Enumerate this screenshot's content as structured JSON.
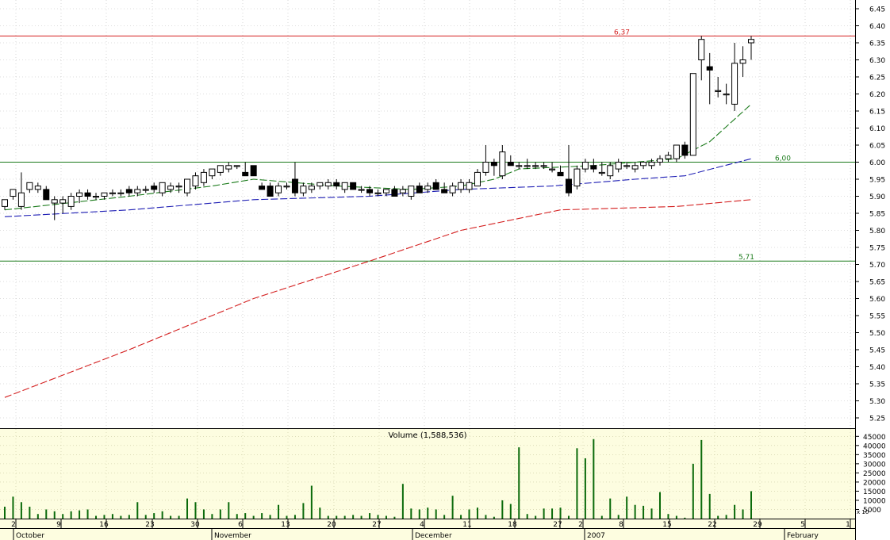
{
  "chart_data": [
    {
      "type": "candlestick",
      "panel": "price",
      "yticks": [
        "6.45",
        "6.40",
        "6.35",
        "6.30",
        "6.25",
        "6.20",
        "6.15",
        "6.10",
        "6.05",
        "6.00",
        "5.95",
        "5.90",
        "5.85",
        "5.80",
        "5.75",
        "5.70",
        "5.65",
        "5.60",
        "5.55",
        "5.50",
        "5.45",
        "5.40",
        "5.35",
        "5.30",
        "5.25"
      ],
      "ylim": [
        5.21,
        6.49
      ],
      "grid": true,
      "horizontal_lines": [
        {
          "value": 6.37,
          "label": "6,37",
          "color": "#d42020"
        },
        {
          "value": 6.0,
          "label": "6,00",
          "color": "#1a7a1a"
        },
        {
          "value": 5.71,
          "label": "5,71",
          "color": "#1a7a1a"
        }
      ],
      "candles": [
        {
          "date": "2006-10-02",
          "o": 5.87,
          "h": 5.89,
          "l": 5.86,
          "c": 5.89
        },
        {
          "date": "2006-10-03",
          "o": 5.9,
          "h": 5.92,
          "l": 5.89,
          "c": 5.92
        },
        {
          "date": "2006-10-04",
          "o": 5.87,
          "h": 5.97,
          "l": 5.86,
          "c": 5.91
        },
        {
          "date": "2006-10-05",
          "o": 5.92,
          "h": 5.94,
          "l": 5.91,
          "c": 5.94
        },
        {
          "date": "2006-10-06",
          "o": 5.92,
          "h": 5.94,
          "l": 5.91,
          "c": 5.93
        },
        {
          "date": "2006-10-09",
          "o": 5.92,
          "h": 5.93,
          "l": 5.89,
          "c": 5.89
        },
        {
          "date": "2006-10-10",
          "o": 5.88,
          "h": 5.9,
          "l": 5.83,
          "c": 5.89
        },
        {
          "date": "2006-10-11",
          "o": 5.88,
          "h": 5.9,
          "l": 5.85,
          "c": 5.89
        },
        {
          "date": "2006-10-12",
          "o": 5.87,
          "h": 5.91,
          "l": 5.86,
          "c": 5.9
        },
        {
          "date": "2006-10-13",
          "o": 5.9,
          "h": 5.92,
          "l": 5.88,
          "c": 5.91
        },
        {
          "date": "2006-10-16",
          "o": 5.91,
          "h": 5.92,
          "l": 5.89,
          "c": 5.9
        },
        {
          "date": "2006-10-17",
          "o": 5.9,
          "h": 5.91,
          "l": 5.89,
          "c": 5.9
        },
        {
          "date": "2006-10-18",
          "o": 5.9,
          "h": 5.91,
          "l": 5.89,
          "c": 5.91
        },
        {
          "date": "2006-10-19",
          "o": 5.91,
          "h": 5.92,
          "l": 5.9,
          "c": 5.91
        },
        {
          "date": "2006-10-20",
          "o": 5.91,
          "h": 5.92,
          "l": 5.9,
          "c": 5.91
        },
        {
          "date": "2006-10-23",
          "o": 5.92,
          "h": 5.93,
          "l": 5.9,
          "c": 5.91
        },
        {
          "date": "2006-10-24",
          "o": 5.91,
          "h": 5.93,
          "l": 5.9,
          "c": 5.92
        },
        {
          "date": "2006-10-25",
          "o": 5.92,
          "h": 5.93,
          "l": 5.91,
          "c": 5.92
        },
        {
          "date": "2006-10-26",
          "o": 5.93,
          "h": 5.94,
          "l": 5.91,
          "c": 5.92
        },
        {
          "date": "2006-10-27",
          "o": 5.91,
          "h": 5.94,
          "l": 5.9,
          "c": 5.94
        },
        {
          "date": "2006-10-30",
          "o": 5.92,
          "h": 5.94,
          "l": 5.91,
          "c": 5.93
        },
        {
          "date": "2006-10-31",
          "o": 5.93,
          "h": 5.94,
          "l": 5.91,
          "c": 5.93
        },
        {
          "date": "2006-11-01",
          "o": 5.91,
          "h": 5.95,
          "l": 5.9,
          "c": 5.95
        },
        {
          "date": "2006-11-02",
          "o": 5.93,
          "h": 5.97,
          "l": 5.92,
          "c": 5.96
        },
        {
          "date": "2006-11-03",
          "o": 5.94,
          "h": 5.98,
          "l": 5.93,
          "c": 5.97
        },
        {
          "date": "2006-11-06",
          "o": 5.96,
          "h": 5.98,
          "l": 5.95,
          "c": 5.98
        },
        {
          "date": "2006-11-07",
          "o": 5.97,
          "h": 5.99,
          "l": 5.96,
          "c": 5.99
        },
        {
          "date": "2006-11-08",
          "o": 5.98,
          "h": 6.0,
          "l": 5.97,
          "c": 5.99
        },
        {
          "date": "2006-11-09",
          "o": 5.99,
          "h": 5.99,
          "l": 5.98,
          "c": 5.99
        },
        {
          "date": "2006-11-10",
          "o": 5.97,
          "h": 6.0,
          "l": 5.96,
          "c": 5.96
        },
        {
          "date": "2006-11-13",
          "o": 5.99,
          "h": 5.99,
          "l": 5.96,
          "c": 5.96
        },
        {
          "date": "2006-11-14",
          "o": 5.93,
          "h": 5.94,
          "l": 5.92,
          "c": 5.92
        },
        {
          "date": "2006-11-15",
          "o": 5.93,
          "h": 5.94,
          "l": 5.9,
          "c": 5.9
        },
        {
          "date": "2006-11-16",
          "o": 5.91,
          "h": 5.94,
          "l": 5.9,
          "c": 5.93
        },
        {
          "date": "2006-11-17",
          "o": 5.93,
          "h": 5.94,
          "l": 5.92,
          "c": 5.93
        },
        {
          "date": "2006-11-20",
          "o": 5.95,
          "h": 6.0,
          "l": 5.9,
          "c": 5.91
        },
        {
          "date": "2006-11-21",
          "o": 5.91,
          "h": 5.94,
          "l": 5.9,
          "c": 5.93
        },
        {
          "date": "2006-11-22",
          "o": 5.92,
          "h": 5.94,
          "l": 5.91,
          "c": 5.93
        },
        {
          "date": "2006-11-23",
          "o": 5.93,
          "h": 5.94,
          "l": 5.92,
          "c": 5.94
        },
        {
          "date": "2006-11-24",
          "o": 5.93,
          "h": 5.95,
          "l": 5.92,
          "c": 5.94
        },
        {
          "date": "2006-11-27",
          "o": 5.94,
          "h": 5.95,
          "l": 5.92,
          "c": 5.93
        },
        {
          "date": "2006-11-28",
          "o": 5.92,
          "h": 5.94,
          "l": 5.91,
          "c": 5.94
        },
        {
          "date": "2006-11-29",
          "o": 5.94,
          "h": 5.94,
          "l": 5.92,
          "c": 5.92
        },
        {
          "date": "2006-11-30",
          "o": 5.92,
          "h": 5.93,
          "l": 5.91,
          "c": 5.92
        },
        {
          "date": "2006-12-01",
          "o": 5.92,
          "h": 5.93,
          "l": 5.9,
          "c": 5.91
        },
        {
          "date": "2006-12-04",
          "o": 5.91,
          "h": 5.92,
          "l": 5.9,
          "c": 5.91
        },
        {
          "date": "2006-12-05",
          "o": 5.91,
          "h": 5.92,
          "l": 5.9,
          "c": 5.92
        },
        {
          "date": "2006-12-06",
          "o": 5.92,
          "h": 5.93,
          "l": 5.9,
          "c": 5.9
        },
        {
          "date": "2006-12-07",
          "o": 5.91,
          "h": 5.93,
          "l": 5.9,
          "c": 5.92
        },
        {
          "date": "2006-12-08",
          "o": 5.9,
          "h": 5.93,
          "l": 5.89,
          "c": 5.93
        },
        {
          "date": "2006-12-11",
          "o": 5.93,
          "h": 5.94,
          "l": 5.91,
          "c": 5.91
        },
        {
          "date": "2006-12-12",
          "o": 5.92,
          "h": 5.94,
          "l": 5.91,
          "c": 5.93
        },
        {
          "date": "2006-12-13",
          "o": 5.94,
          "h": 5.95,
          "l": 5.92,
          "c": 5.92
        },
        {
          "date": "2006-12-14",
          "o": 5.92,
          "h": 5.94,
          "l": 5.91,
          "c": 5.91
        },
        {
          "date": "2006-12-15",
          "o": 5.91,
          "h": 5.94,
          "l": 5.9,
          "c": 5.93
        },
        {
          "date": "2006-12-18",
          "o": 5.92,
          "h": 5.95,
          "l": 5.91,
          "c": 5.94
        },
        {
          "date": "2006-12-19",
          "o": 5.92,
          "h": 5.95,
          "l": 5.91,
          "c": 5.94
        },
        {
          "date": "2006-12-20",
          "o": 5.93,
          "h": 5.98,
          "l": 5.93,
          "c": 5.97
        },
        {
          "date": "2006-12-21",
          "o": 5.97,
          "h": 6.05,
          "l": 5.96,
          "c": 6.0
        },
        {
          "date": "2006-12-22",
          "o": 6.0,
          "h": 6.01,
          "l": 5.96,
          "c": 5.99
        },
        {
          "date": "2006-12-27",
          "o": 5.96,
          "h": 6.05,
          "l": 5.95,
          "c": 6.03
        },
        {
          "date": "2006-12-28",
          "o": 6.0,
          "h": 6.02,
          "l": 5.99,
          "c": 5.99
        },
        {
          "date": "2006-12-29",
          "o": 5.99,
          "h": 6.0,
          "l": 5.98,
          "c": 5.99
        },
        {
          "date": "2007-01-02",
          "o": 5.99,
          "h": 6.01,
          "l": 5.98,
          "c": 5.99
        },
        {
          "date": "2007-01-03",
          "o": 5.99,
          "h": 6.0,
          "l": 5.98,
          "c": 5.99
        },
        {
          "date": "2007-01-04",
          "o": 5.99,
          "h": 6.0,
          "l": 5.98,
          "c": 5.99
        },
        {
          "date": "2007-01-05",
          "o": 5.98,
          "h": 6.0,
          "l": 5.97,
          "c": 5.98
        },
        {
          "date": "2007-01-08",
          "o": 5.97,
          "h": 5.99,
          "l": 5.96,
          "c": 5.96
        },
        {
          "date": "2007-01-09",
          "o": 5.95,
          "h": 6.05,
          "l": 5.9,
          "c": 5.91
        },
        {
          "date": "2007-01-10",
          "o": 5.93,
          "h": 5.99,
          "l": 5.92,
          "c": 5.98
        },
        {
          "date": "2007-01-11",
          "o": 5.98,
          "h": 6.01,
          "l": 5.97,
          "c": 6.0
        },
        {
          "date": "2007-01-12",
          "o": 5.99,
          "h": 6.01,
          "l": 5.97,
          "c": 5.98
        },
        {
          "date": "2007-01-15",
          "o": 5.97,
          "h": 6.0,
          "l": 5.96,
          "c": 5.97
        },
        {
          "date": "2007-01-16",
          "o": 5.96,
          "h": 6.0,
          "l": 5.95,
          "c": 5.99
        },
        {
          "date": "2007-01-17",
          "o": 5.98,
          "h": 6.01,
          "l": 5.97,
          "c": 6.0
        },
        {
          "date": "2007-01-18",
          "o": 5.99,
          "h": 6.0,
          "l": 5.98,
          "c": 5.99
        },
        {
          "date": "2007-01-19",
          "o": 5.98,
          "h": 6.0,
          "l": 5.97,
          "c": 5.99
        },
        {
          "date": "2007-01-22",
          "o": 5.99,
          "h": 6.0,
          "l": 5.98,
          "c": 6.0
        },
        {
          "date": "2007-01-23",
          "o": 5.99,
          "h": 6.01,
          "l": 5.98,
          "c": 6.0
        },
        {
          "date": "2007-01-24",
          "o": 6.0,
          "h": 6.02,
          "l": 5.99,
          "c": 6.01
        },
        {
          "date": "2007-01-25",
          "o": 6.01,
          "h": 6.03,
          "l": 6.0,
          "c": 6.02
        },
        {
          "date": "2007-01-26",
          "o": 6.01,
          "h": 6.05,
          "l": 6.0,
          "c": 6.05
        },
        {
          "date": "2007-01-29",
          "o": 6.05,
          "h": 6.06,
          "l": 6.01,
          "c": 6.02
        },
        {
          "date": "2007-01-30",
          "o": 6.02,
          "h": 6.26,
          "l": 6.02,
          "c": 6.26
        },
        {
          "date": "2007-01-31",
          "o": 6.3,
          "h": 6.37,
          "l": 6.24,
          "c": 6.36
        },
        {
          "date": "2007-02-01",
          "o": 6.28,
          "h": 6.32,
          "l": 6.17,
          "c": 6.27
        },
        {
          "date": "2007-02-02",
          "o": 6.21,
          "h": 6.25,
          "l": 6.19,
          "c": 6.21
        },
        {
          "date": "2007-02-05",
          "o": 6.2,
          "h": 6.23,
          "l": 6.17,
          "c": 6.2
        },
        {
          "date": "2007-02-06",
          "o": 6.17,
          "h": 6.35,
          "l": 6.15,
          "c": 6.29
        },
        {
          "date": "2007-02-07",
          "o": 6.29,
          "h": 6.34,
          "l": 6.25,
          "c": 6.3
        },
        {
          "date": "2007-02-08",
          "o": 6.35,
          "h": 6.37,
          "l": 6.3,
          "c": 6.36
        }
      ],
      "moving_averages": [
        {
          "color": "#1a7a1a",
          "points": [
            [
              "2006-10-02",
              5.86
            ],
            [
              "2006-10-23",
              5.9
            ],
            [
              "2006-11-06",
              5.93
            ],
            [
              "2006-11-13",
              5.95
            ],
            [
              "2006-11-27",
              5.93
            ],
            [
              "2006-12-08",
              5.92
            ],
            [
              "2006-12-18",
              5.93
            ],
            [
              "2006-12-22",
              5.95
            ],
            [
              "2006-12-29",
              5.98
            ],
            [
              "2007-01-12",
              5.99
            ],
            [
              "2007-01-26",
              6.01
            ],
            [
              "2007-02-01",
              6.06
            ],
            [
              "2007-02-08",
              6.17
            ]
          ]
        },
        {
          "color": "#1e1eb4",
          "points": [
            [
              "2006-10-02",
              5.84
            ],
            [
              "2006-10-23",
              5.86
            ],
            [
              "2006-11-13",
              5.89
            ],
            [
              "2006-12-01",
              5.9
            ],
            [
              "2006-12-18",
              5.92
            ],
            [
              "2007-01-05",
              5.93
            ],
            [
              "2007-01-19",
              5.95
            ],
            [
              "2007-01-29",
              5.96
            ],
            [
              "2007-02-08",
              6.01
            ]
          ]
        },
        {
          "color": "#d42020",
          "points": [
            [
              "2006-10-02",
              5.31
            ],
            [
              "2006-10-23",
              5.45
            ],
            [
              "2006-11-13",
              5.6
            ],
            [
              "2006-12-01",
              5.71
            ],
            [
              "2006-12-18",
              5.8
            ],
            [
              "2007-01-08",
              5.86
            ],
            [
              "2007-01-26",
              5.87
            ],
            [
              "2007-02-08",
              5.89
            ]
          ]
        }
      ]
    },
    {
      "type": "bar",
      "panel": "volume",
      "title": "Volume (1,588,536)",
      "yticks": [
        "45000",
        "40000",
        "35000",
        "30000",
        "25000",
        "20000",
        "15000",
        "10000",
        "5000"
      ],
      "ylim": [
        0,
        46000
      ],
      "ylabel": "x 10",
      "values": [
        6500,
        12000,
        9000,
        6500,
        2500,
        5000,
        4000,
        2500,
        4000,
        4500,
        5000,
        1500,
        2000,
        2500,
        1500,
        2000,
        9000,
        2000,
        3000,
        4000,
        1500,
        1500,
        11000,
        9000,
        5000,
        2500,
        5000,
        9000,
        2500,
        3000,
        1500,
        3000,
        2000,
        7500,
        1500,
        2000,
        8500,
        18000,
        6000,
        1500,
        1500,
        1500,
        2000,
        1500,
        3000,
        2000,
        1500,
        1000,
        19000,
        5500,
        5000,
        6000,
        5000,
        2000,
        12500,
        2000,
        5000,
        6000,
        2000,
        1000,
        10000,
        8000,
        39000,
        2500,
        1500,
        5500,
        5500,
        6000,
        1500,
        38500,
        33000,
        43500,
        1500,
        11000,
        2000,
        12000,
        7500,
        7000,
        5500,
        14500,
        2500,
        1500,
        500,
        30000,
        43000,
        13500,
        1500,
        2000,
        7500,
        5000,
        15000
      ],
      "xticks": [
        "2",
        "9",
        "16",
        "23",
        "30",
        "6",
        "13",
        "20",
        "27",
        "4",
        "11",
        "18",
        "27",
        "2",
        "8",
        "15",
        "22",
        "29",
        "5",
        "1"
      ],
      "months": [
        "October",
        "November",
        "December",
        "2007",
        "February"
      ]
    }
  ]
}
